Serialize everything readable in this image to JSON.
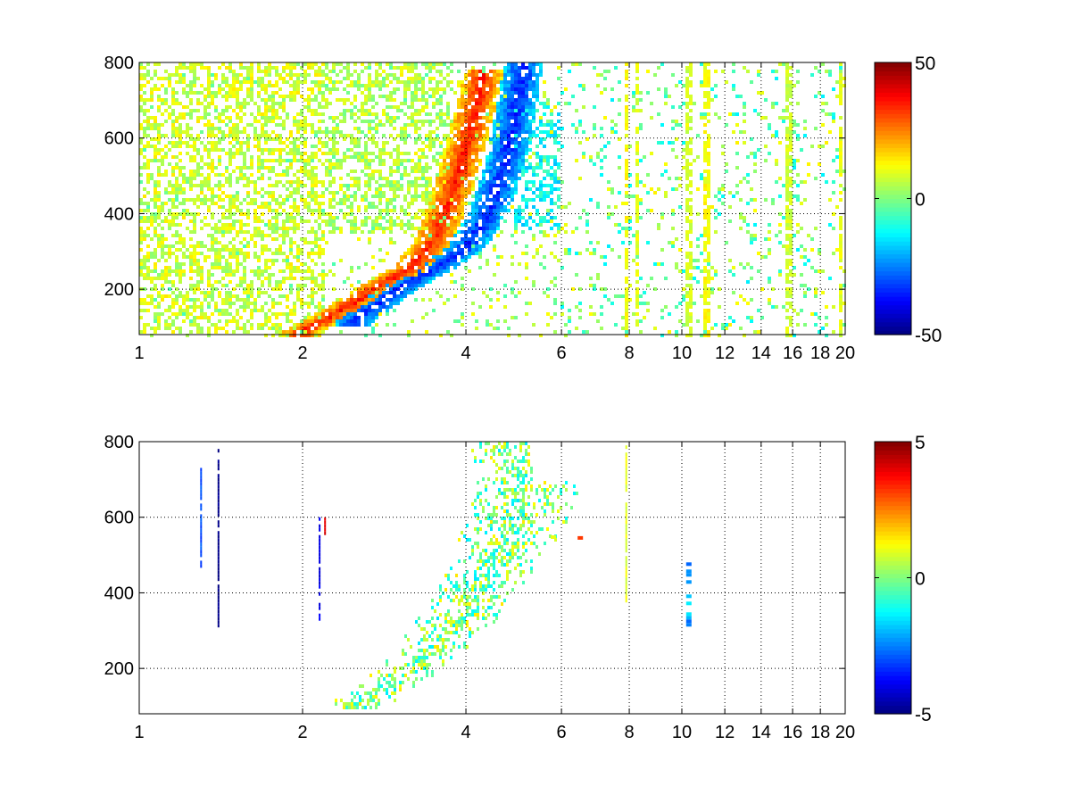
{
  "chart_data": [
    {
      "type": "heatmap",
      "panel": "top",
      "x_ticks": [
        1,
        2,
        4,
        6,
        8,
        10,
        12,
        14,
        16,
        18,
        20
      ],
      "x_tick_labels": [
        "1",
        "2",
        "4",
        "6",
        "8",
        "10",
        "12",
        "14",
        "16",
        "18",
        "20"
      ],
      "y_ticks": [
        200,
        400,
        600,
        800
      ],
      "y_tick_labels": [
        "200",
        "400",
        "600",
        "800"
      ],
      "xlim": [
        1,
        20
      ],
      "ylim": [
        80,
        800
      ],
      "grid": true,
      "colormap": "jet",
      "clim": [
        -50,
        50
      ],
      "colorbar_ticks": [
        -50,
        0,
        50
      ],
      "colorbar_tick_labels": [
        "-50",
        "0",
        "50"
      ],
      "features": [
        {
          "type": "ridge",
          "value": 35,
          "points": [
            [
              2.0,
              90
            ],
            [
              2.4,
              150
            ],
            [
              2.8,
              215
            ],
            [
              3.2,
              260
            ],
            [
              3.5,
              330
            ],
            [
              3.7,
              420
            ],
            [
              3.9,
              520
            ],
            [
              4.1,
              640
            ],
            [
              4.3,
              760
            ]
          ]
        },
        {
          "type": "ridge",
          "value": -35,
          "points": [
            [
              2.5,
              120
            ],
            [
              3.0,
              200
            ],
            [
              3.5,
              255
            ],
            [
              4.0,
              310
            ],
            [
              4.4,
              400
            ],
            [
              4.7,
              520
            ],
            [
              4.9,
              640
            ],
            [
              5.1,
              780
            ]
          ]
        },
        {
          "type": "band",
          "x": [
            1.0,
            2.2
          ],
          "y": [
            80,
            800
          ],
          "value": 8
        },
        {
          "type": "band",
          "x": [
            2.2,
            3.8
          ],
          "y": [
            350,
            800
          ],
          "value": 5
        },
        {
          "type": "band",
          "x": [
            4.9,
            6.0
          ],
          "y": [
            360,
            700
          ],
          "value": -12
        },
        {
          "type": "stripe",
          "x": 7.9,
          "value": 12
        },
        {
          "type": "stripe",
          "x": 8.3,
          "value": 10
        },
        {
          "type": "stripe",
          "x": 10.3,
          "value": 8
        },
        {
          "type": "stripe",
          "x": 11.1,
          "value": 12
        },
        {
          "type": "stripe",
          "x": 15.7,
          "value": 8
        },
        {
          "type": "stripe",
          "x": 19.6,
          "value": 10
        }
      ],
      "noise": {
        "x": [
          6.0,
          20.0
        ],
        "y": [
          80,
          800
        ],
        "density": 0.12,
        "value_range": [
          -14,
          14
        ]
      }
    },
    {
      "type": "heatmap",
      "panel": "bottom",
      "x_ticks": [
        1,
        2,
        4,
        6,
        8,
        10,
        12,
        14,
        16,
        18,
        20
      ],
      "x_tick_labels": [
        "1",
        "2",
        "4",
        "6",
        "8",
        "10",
        "12",
        "14",
        "16",
        "18",
        "20"
      ],
      "y_ticks": [
        200,
        400,
        600,
        800
      ],
      "y_tick_labels": [
        "200",
        "400",
        "600",
        "800"
      ],
      "xlim": [
        1,
        20
      ],
      "ylim": [
        80,
        800
      ],
      "grid": true,
      "colormap": "jet",
      "clim": [
        -5,
        5
      ],
      "colorbar_ticks": [
        -5,
        0,
        5
      ],
      "colorbar_tick_labels": [
        "-5",
        "0",
        "5"
      ],
      "cluster": {
        "center_path": [
          [
            2.5,
            100
          ],
          [
            3.0,
            170
          ],
          [
            3.5,
            260
          ],
          [
            4.0,
            360
          ],
          [
            4.5,
            480
          ],
          [
            5.0,
            600
          ],
          [
            5.3,
            700
          ]
        ],
        "spread": 0.55,
        "value_range": [
          -1.5,
          1.5
        ]
      },
      "features": [
        {
          "type": "line",
          "x": 1.4,
          "y": [
            310,
            790
          ],
          "value": -5
        },
        {
          "type": "line",
          "x": 1.3,
          "y": [
            470,
            740
          ],
          "value": -3
        },
        {
          "type": "line",
          "x": 2.15,
          "y": [
            330,
            600
          ],
          "value": -4
        },
        {
          "type": "line",
          "x": 2.2,
          "y": [
            560,
            600
          ],
          "value": 4
        },
        {
          "type": "line",
          "x": 7.9,
          "y": [
            380,
            790
          ],
          "value": 1
        },
        {
          "type": "blob",
          "x": 10.3,
          "y": [
            310,
            490
          ],
          "value": -2
        },
        {
          "type": "blob",
          "x": 5.8,
          "y": [
            500,
            590
          ],
          "value": 2
        },
        {
          "type": "blob",
          "x": 6.5,
          "y": [
            540,
            550
          ],
          "value": 3
        }
      ]
    }
  ]
}
